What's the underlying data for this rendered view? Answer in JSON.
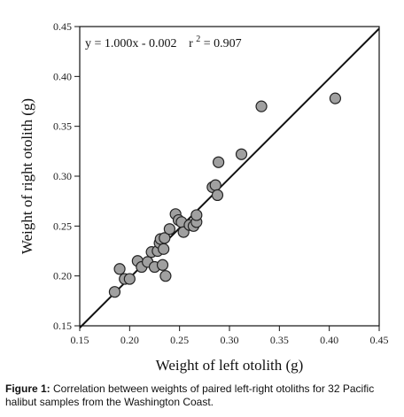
{
  "chart_data": {
    "type": "scatter",
    "title": "",
    "xlabel": "Weight of left otolith (g)",
    "ylabel": "Weight of right otolith (g)",
    "xlim": [
      0.15,
      0.45
    ],
    "ylim": [
      0.15,
      0.45
    ],
    "xticks": [
      "0.15",
      "0.20",
      "0.25",
      "0.30",
      "0.35",
      "0.40",
      "0.45"
    ],
    "yticks": [
      "0.15",
      "0.20",
      "0.25",
      "0.30",
      "0.35",
      "0.40",
      "0.45"
    ],
    "grid": false,
    "annotation": {
      "equation": "y = 1.000x - 0.002",
      "r2_prefix": "r",
      "r2_exp": "2",
      "r2_value": " = 0.907"
    },
    "fit_line": {
      "slope": 1.0,
      "intercept": -0.002,
      "x_range": [
        0.15,
        0.45
      ]
    },
    "series": [
      {
        "points": [
          [
            0.185,
            0.184
          ],
          [
            0.19,
            0.207
          ],
          [
            0.195,
            0.197
          ],
          [
            0.2,
            0.197
          ],
          [
            0.208,
            0.215
          ],
          [
            0.212,
            0.209
          ],
          [
            0.218,
            0.214
          ],
          [
            0.222,
            0.224
          ],
          [
            0.225,
            0.209
          ],
          [
            0.228,
            0.225
          ],
          [
            0.23,
            0.233
          ],
          [
            0.231,
            0.237
          ],
          [
            0.233,
            0.211
          ],
          [
            0.234,
            0.227
          ],
          [
            0.235,
            0.238
          ],
          [
            0.236,
            0.2
          ],
          [
            0.24,
            0.247
          ],
          [
            0.246,
            0.262
          ],
          [
            0.249,
            0.256
          ],
          [
            0.252,
            0.254
          ],
          [
            0.254,
            0.244
          ],
          [
            0.26,
            0.251
          ],
          [
            0.264,
            0.25
          ],
          [
            0.267,
            0.254
          ],
          [
            0.267,
            0.261
          ],
          [
            0.283,
            0.289
          ],
          [
            0.286,
            0.291
          ],
          [
            0.288,
            0.281
          ],
          [
            0.289,
            0.314
          ],
          [
            0.312,
            0.322
          ],
          [
            0.332,
            0.37
          ],
          [
            0.406,
            0.378
          ]
        ]
      }
    ],
    "colors": {
      "marker_fill": "#a0a0a0",
      "marker_stroke": "#222222",
      "line": "#111111"
    }
  },
  "caption": {
    "label": "Figure 1:",
    "text": " Correlation between weights of paired left-right otoliths for 32 Pacific halibut samples from the Washington Coast."
  }
}
